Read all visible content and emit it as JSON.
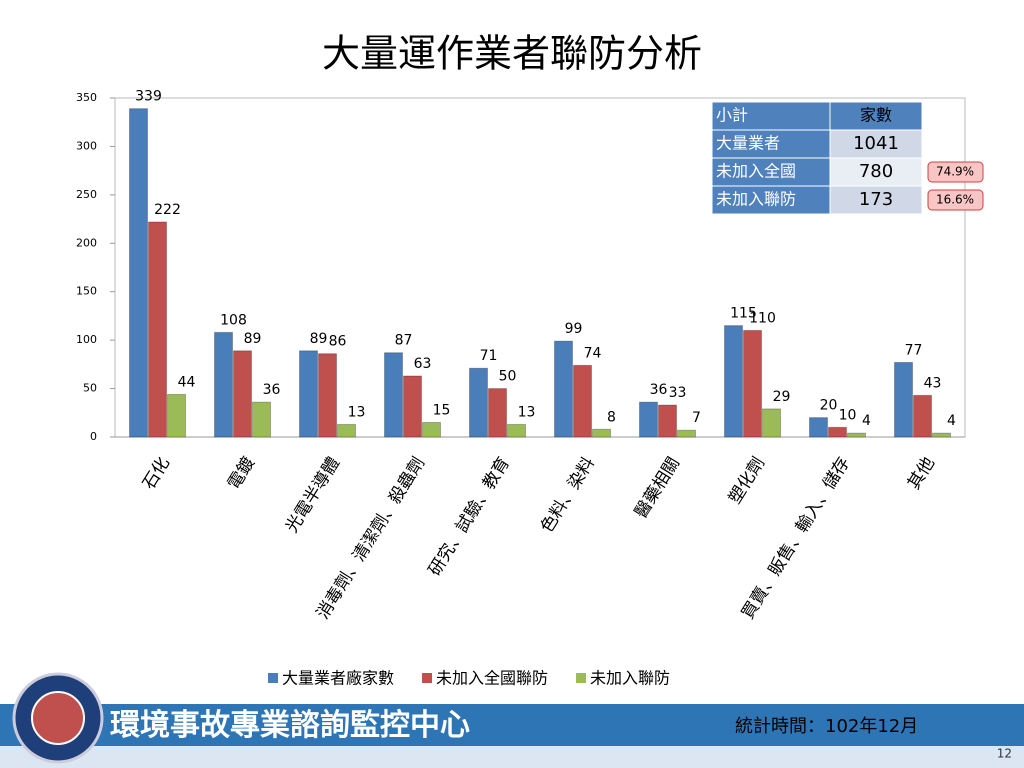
{
  "chart_data": {
    "type": "bar",
    "title": "大量運作業者聯防分析",
    "categories": [
      "石化",
      "電鍍",
      "光電半導體",
      "消毒劑、清潔劑、殺蟲劑",
      "研究、試驗、教育",
      "色料、染料",
      "醫藥相關",
      "塑化劑",
      "買賣、販售、輸入、儲存",
      "其他"
    ],
    "series": [
      {
        "name": "大量業者廠家數",
        "color": "#4a7ebb",
        "values": [
          339,
          108,
          89,
          87,
          71,
          99,
          36,
          115,
          20,
          77
        ]
      },
      {
        "name": "未加入全國聯防",
        "color": "#c0504d",
        "values": [
          222,
          89,
          86,
          63,
          50,
          74,
          33,
          110,
          10,
          43
        ]
      },
      {
        "name": "未加入聯防",
        "color": "#9bbb59",
        "values": [
          44,
          36,
          13,
          15,
          13,
          8,
          7,
          29,
          4,
          4
        ]
      }
    ],
    "ylim": [
      0,
      350
    ],
    "yticks": [
      0,
      50,
      100,
      150,
      200,
      250,
      300,
      350
    ],
    "grid": false,
    "legend": "bottom"
  },
  "table": {
    "header": [
      "小計",
      "家數"
    ],
    "rows": [
      {
        "label": "大量業者",
        "count": 1041
      },
      {
        "label": "未加入全國",
        "count": 780,
        "share": "74.9%"
      },
      {
        "label": "未加入聯防",
        "count": 173,
        "share": "16.6%"
      }
    ]
  },
  "footer": {
    "center": "環境事故專業諮詢監控中心",
    "date": "統計時間：102年12月",
    "page": 12
  }
}
